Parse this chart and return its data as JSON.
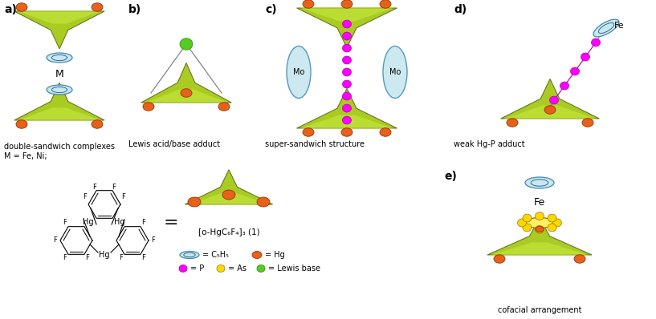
{
  "bg_color": "#ffffff",
  "orange": "#E8611A",
  "magenta": "#FF00FF",
  "yellow": "#FFD700",
  "lime_green": "#55CC22",
  "gray": "#888888",
  "cyan_cp": "#AADDEE",
  "green_surf": "#AACC22",
  "green_hi": "#CCEE44",
  "green_edge": "#667722",
  "captions": {
    "a1": "double-sandwich complexes",
    "a2": "M = Fe, Ni;",
    "b": "Lewis acid/base adduct",
    "c": "super-sandwich structure",
    "d": "weak Hg-P adduct",
    "e": "cofacial arrangement"
  },
  "formula": "[o-HgC₆F₄]₃ (1)"
}
